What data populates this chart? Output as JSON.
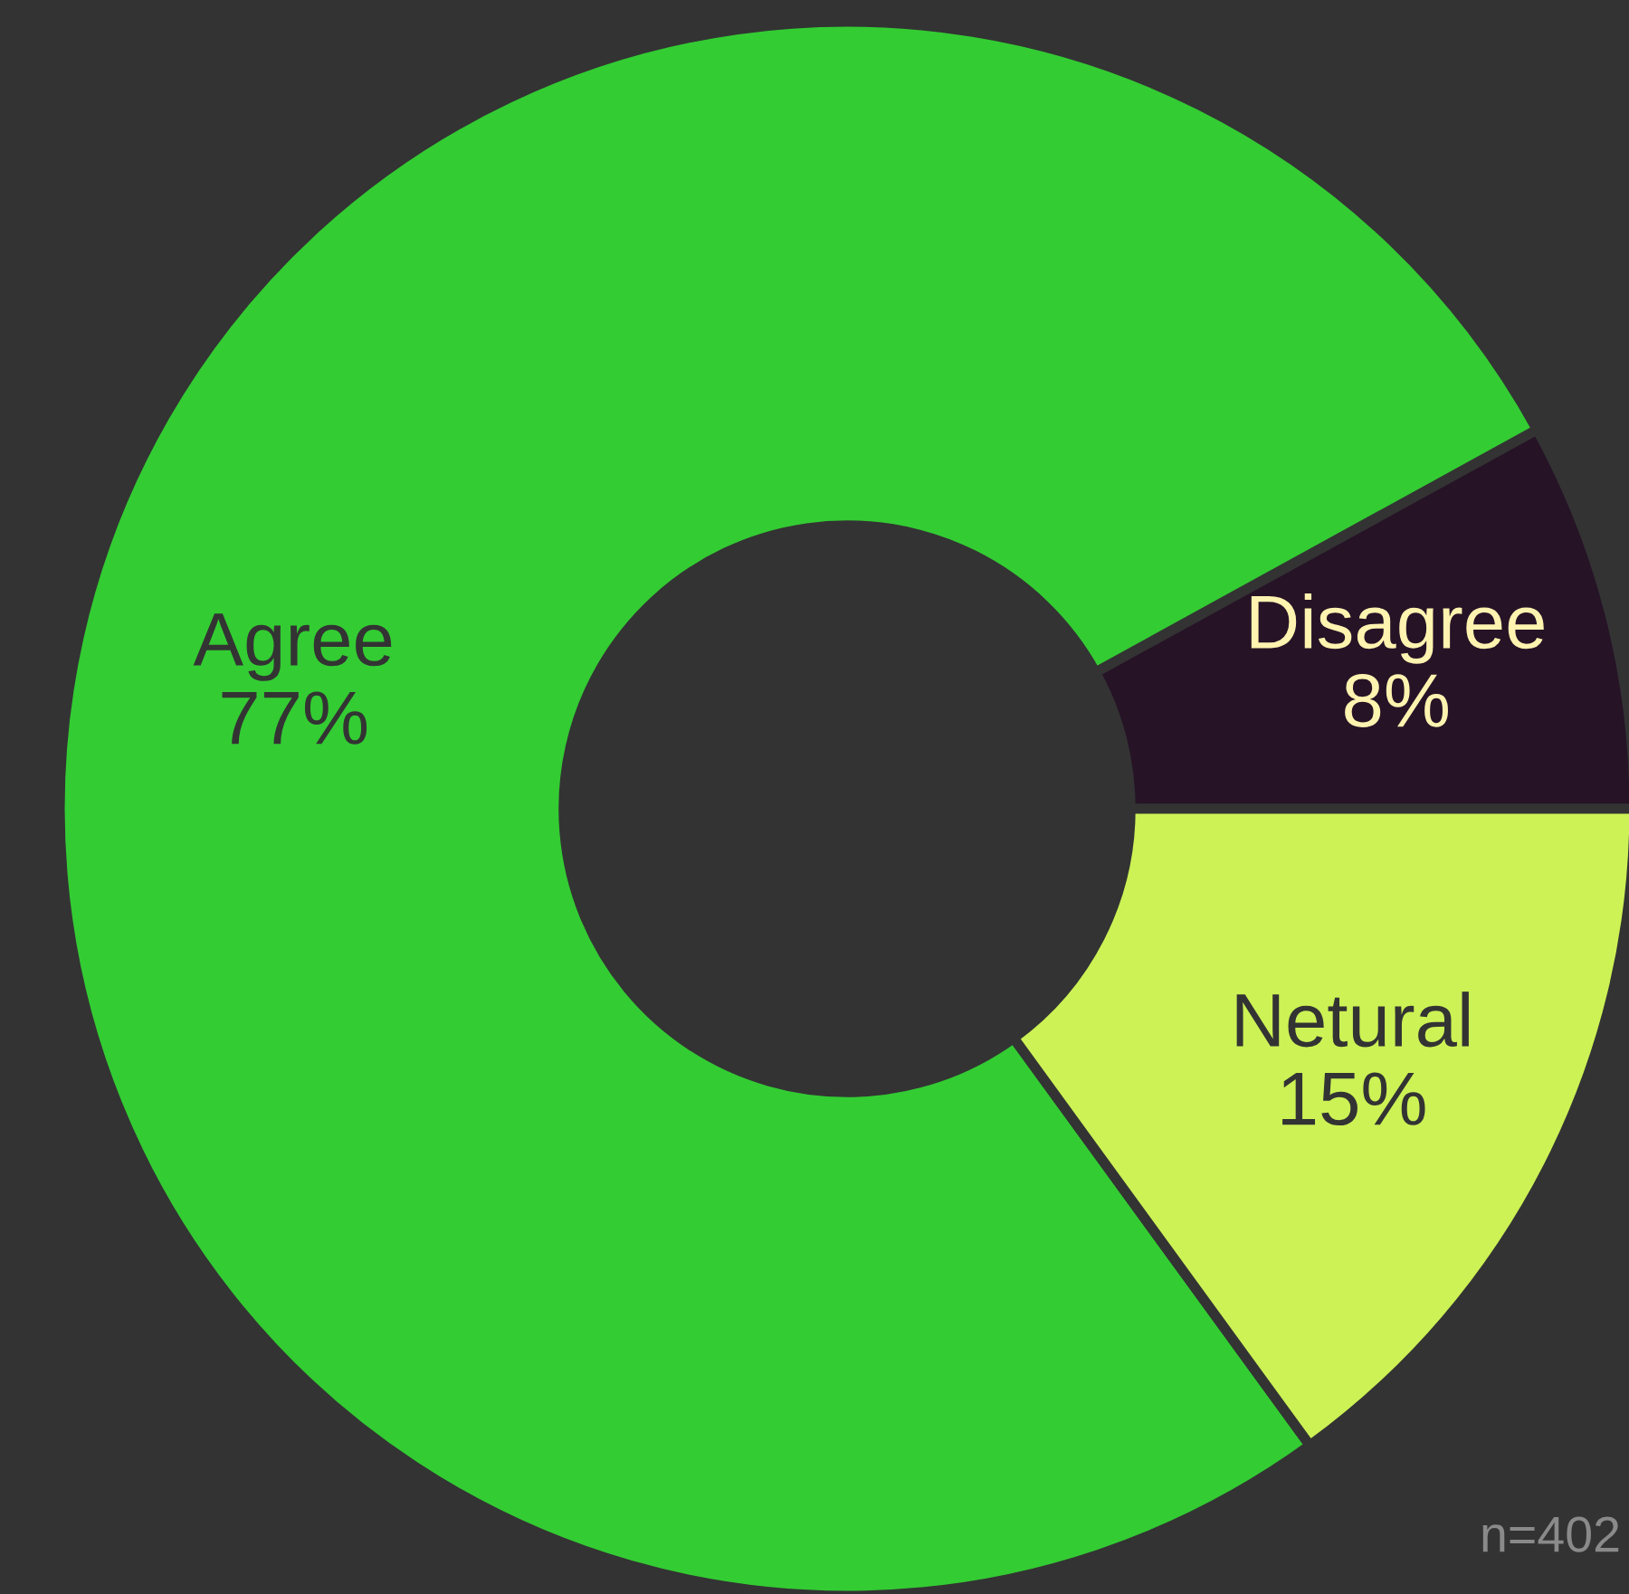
{
  "chart_data": {
    "type": "donut",
    "categories": [
      "Disagree",
      "Agree",
      "Netural"
    ],
    "values": [
      8,
      77,
      15
    ],
    "value_labels": [
      "8%",
      "77%",
      "15%"
    ],
    "colors": [
      "#261326",
      "#33cc33",
      "#ccf255"
    ],
    "annotations": [
      "n=402"
    ]
  }
}
